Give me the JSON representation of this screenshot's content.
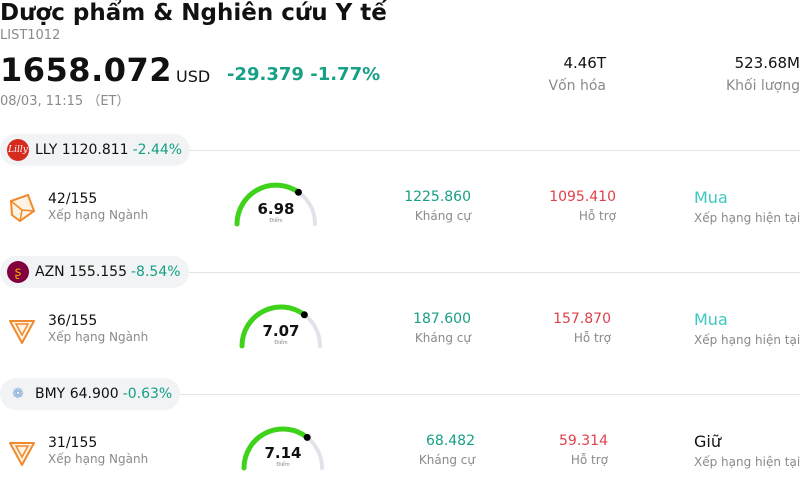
{
  "header": {
    "title": "Dược phẩm & Nghiên cứu Y tế",
    "code": "LIST1012",
    "price": "1658.072",
    "currency": "USD",
    "change": "-29.379",
    "change_pct": "-1.77%",
    "time": "08/03, 11:15 （ET）",
    "market_cap_value": "4.46T",
    "market_cap_label": "Vốn hóa",
    "volume_value": "523.68M",
    "volume_label": "Khối lượng"
  },
  "colors": {
    "up": "#16a085",
    "down": "#e0404a",
    "buy": "#3ec8c0",
    "gauge": "#3ed21a"
  },
  "stocks": [
    {
      "ticker": "LLY",
      "price": "1120.811",
      "change_pct": "-2.44%",
      "logo_icon": "lilly-logo-icon",
      "rank": "42/155",
      "rank_label": "Xếp hạng Ngành",
      "score": "6.98",
      "score_label": "Điểm",
      "resistance": "1225.860",
      "resistance_label": "Kháng cự",
      "support": "1095.410",
      "support_label": "Hỗ trợ",
      "rating": "Mua",
      "rating_label": "Xếp hạng hiện tại"
    },
    {
      "ticker": "AZN",
      "price": "155.155",
      "change_pct": "-8.54%",
      "logo_icon": "astrazeneca-logo-icon",
      "rank": "36/155",
      "rank_label": "Xếp hạng Ngành",
      "score": "7.07",
      "score_label": "Điểm",
      "resistance": "187.600",
      "resistance_label": "Kháng cự",
      "support": "157.870",
      "support_label": "Hỗ trợ",
      "rating": "Mua",
      "rating_label": "Xếp hạng hiện tại"
    },
    {
      "ticker": "BMY",
      "price": "64.900",
      "change_pct": "-0.63%",
      "logo_icon": "bms-logo-icon",
      "rank": "31/155",
      "rank_label": "Xếp hạng Ngành",
      "score": "7.14",
      "score_label": "Điểm",
      "resistance": "68.482",
      "resistance_label": "Kháng cự",
      "support": "59.314",
      "support_label": "Hỗ trợ",
      "rating": "Giữ",
      "rating_label": "Xếp hạng hiện tại"
    }
  ]
}
